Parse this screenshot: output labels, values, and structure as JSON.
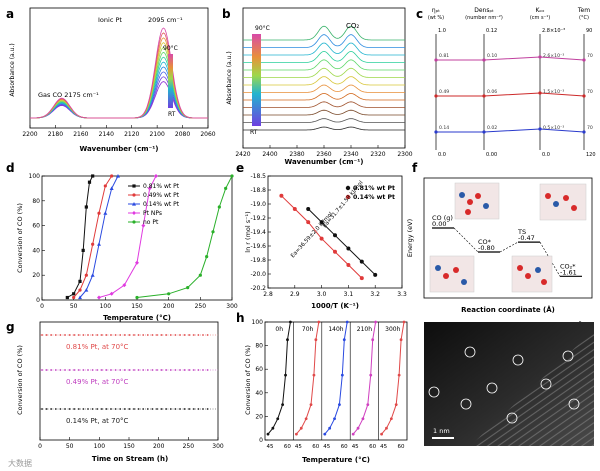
{
  "watermark": "大数据",
  "panel_a": {
    "letter": "a",
    "type": "line",
    "xlabel": "Wavenumber (cm⁻¹)",
    "ylabel": "Absorbance (a.u.)",
    "xlim": [
      2200,
      2060
    ],
    "x_ticks": [
      "2200",
      "2180",
      "2160",
      "2140",
      "2120",
      "2100",
      "2080",
      "2060"
    ],
    "ann_gas": "Gas CO  2175 cm⁻¹",
    "ann_ionic": "Ionic Pt",
    "ann_ionic_val": "2095 cm⁻¹",
    "temp_top": "90°C",
    "temp_bottom": "RT",
    "peak_position": 2095,
    "gas_co_position": 2175,
    "series_count": 12,
    "series_colors": [
      "#8a2fd4",
      "#6e3fe0",
      "#4a64e6",
      "#2f8de0",
      "#22b4cf",
      "#2ccf9c",
      "#5fd86a",
      "#9ed84a",
      "#d8c63a",
      "#e8903a",
      "#e05e5e",
      "#d84aa8"
    ]
  },
  "panel_b": {
    "letter": "b",
    "type": "line",
    "xlabel": "Wavenumber (cm⁻¹)",
    "ylabel": "Absorbance (a.u.)",
    "xlim": [
      2420,
      2300
    ],
    "x_ticks": [
      "2420",
      "2400",
      "2380",
      "2360",
      "2340",
      "2320",
      "2300"
    ],
    "ann_co2": "CO₂",
    "temp_top": "90°C",
    "temp_bottom": "RT",
    "series_count": 13,
    "series_colors": [
      "#2a2a2a",
      "#555555",
      "#7a4a2a",
      "#a0522d",
      "#d2691e",
      "#e8903a",
      "#d8c63a",
      "#9ed84a",
      "#5fd86a",
      "#2ccf9c",
      "#22b4cf",
      "#2f8de0",
      "#3ab36b"
    ]
  },
  "panel_c": {
    "letter": "c",
    "col_labels": [
      "ηₚₜ",
      "Densₚₜ",
      "Kₒₓ",
      "Tem"
    ],
    "col_units": [
      "(wt %)",
      "(number nm⁻²)",
      "(cm s⁻¹)",
      "(°C)"
    ],
    "col_top": [
      "1.0",
      "0.12",
      "2.8×10⁻³",
      "90"
    ],
    "col_bottom": [
      "0.0",
      "0.00",
      "0.0",
      "120"
    ],
    "rows": [
      {
        "color": "#c0409e",
        "values": [
          "0.81",
          "0.10",
          "2.6×10⁻³",
          "70"
        ]
      },
      {
        "color": "#cc2a2a",
        "values": [
          "0.49",
          "0.06",
          "1.5×10⁻³",
          "70"
        ]
      },
      {
        "color": "#2a3acc",
        "values": [
          "0.14",
          "0.02",
          "0.5×10⁻³",
          "70"
        ]
      }
    ]
  },
  "chart_data": [
    {
      "panel": "d",
      "type": "line",
      "xlabel": "Temperature (°C)",
      "ylabel": "Conversion of CO (%)",
      "xlim": [
        0,
        300
      ],
      "ylim": [
        0,
        100
      ],
      "x_ticks": [
        "0",
        "50",
        "100",
        "150",
        "200",
        "250",
        "300"
      ],
      "y_ticks": [
        "0",
        "20",
        "40",
        "60",
        "80",
        "100"
      ],
      "series": [
        {
          "name": "0.81% wt Pt",
          "color": "#111111",
          "marker": "square",
          "x": [
            40,
            50,
            60,
            65,
            70,
            75,
            80
          ],
          "y": [
            2,
            5,
            15,
            40,
            75,
            95,
            100
          ]
        },
        {
          "name": "0.49% wt Pt",
          "color": "#e03a3a",
          "marker": "circle",
          "x": [
            50,
            60,
            70,
            80,
            90,
            100,
            110
          ],
          "y": [
            2,
            8,
            20,
            45,
            70,
            92,
            100
          ]
        },
        {
          "name": "0.14% wt Pt",
          "color": "#2a4ae0",
          "marker": "triangle",
          "x": [
            60,
            70,
            80,
            90,
            100,
            110,
            120
          ],
          "y": [
            2,
            8,
            20,
            45,
            70,
            90,
            100
          ]
        },
        {
          "name": "Pt NPs",
          "color": "#e03ae0",
          "marker": "diamond",
          "x": [
            90,
            110,
            130,
            150,
            160,
            170,
            180
          ],
          "y": [
            2,
            5,
            12,
            30,
            60,
            90,
            100
          ]
        },
        {
          "name": "no Pt",
          "color": "#2ab02a",
          "marker": "circle",
          "x": [
            150,
            200,
            230,
            250,
            260,
            270,
            280,
            290,
            300
          ],
          "y": [
            2,
            5,
            10,
            20,
            35,
            55,
            75,
            90,
            100
          ]
        }
      ]
    },
    {
      "panel": "e",
      "type": "scatter",
      "xlabel": "1000/T (K⁻¹)",
      "ylabel": "ln r (mol s⁻¹)",
      "xlim": [
        2.8,
        3.3
      ],
      "ylim": [
        -20.2,
        -18.5
      ],
      "x_ticks": [
        "2.8",
        "2.9",
        "3.0",
        "3.1",
        "3.2",
        "3.3"
      ],
      "y_ticks": [
        "-18.5",
        "-18.8",
        "-19.0",
        "-19.2",
        "-19.4",
        "-19.6",
        "-19.8",
        "-20.0",
        "-20.2"
      ],
      "series": [
        {
          "name": "0.81% wt Pt",
          "color": "#111111",
          "x": [
            2.95,
            3.0,
            3.05,
            3.1,
            3.15,
            3.2
          ],
          "y": [
            -19.0,
            -19.2,
            -19.4,
            -19.6,
            -19.8,
            -20.0
          ]
        },
        {
          "name": "0.14% wt Pt",
          "color": "#e03a3a",
          "x": [
            2.85,
            2.9,
            2.95,
            3.0,
            3.05,
            3.1,
            3.15
          ],
          "y": [
            -18.8,
            -19.0,
            -19.2,
            -19.45,
            -19.65,
            -19.85,
            -20.05
          ]
        }
      ],
      "ann_1": "Ea=31.7±1.58 kJ/mol",
      "ann_2": "Ea=36.59±2.0 kJ/mol"
    },
    {
      "panel": "g",
      "type": "scatter",
      "xlabel": "Time on Stream (h)",
      "ylabel": "Conversion of CO (%)",
      "xlim": [
        0,
        300
      ],
      "x_ticks": [
        "0",
        "50",
        "100",
        "150",
        "200",
        "250",
        "300"
      ],
      "series": [
        {
          "name": "0.81% Pt, at 70°C",
          "color": "#e04a4a",
          "level": 100
        },
        {
          "name": "0.49% Pt, at 70°C",
          "color": "#c040c0",
          "level": 100
        },
        {
          "name": "0.14% Pt, at 70°C",
          "color": "#222222",
          "level": 100
        }
      ]
    },
    {
      "panel": "h",
      "type": "line",
      "xlabel": "Temperature (°C)",
      "ylabel": "Conversion of CO (%)",
      "ylim": [
        0,
        100
      ],
      "y_ticks": [
        "0",
        "20",
        "40",
        "60",
        "80",
        "100"
      ],
      "runs": [
        {
          "label": "0h",
          "color": "#111111"
        },
        {
          "label": "70h",
          "color": "#e04a4a"
        },
        {
          "label": "140h",
          "color": "#2a4ae0"
        },
        {
          "label": "210h",
          "color": "#d040c0"
        },
        {
          "label": "300h",
          "color": "#e04a4a"
        }
      ],
      "run_x": [
        45,
        50,
        55,
        60,
        63,
        65,
        68
      ],
      "run_y": [
        5,
        10,
        18,
        30,
        55,
        85,
        100
      ],
      "x_ticks": [
        "45",
        "60",
        "45",
        "60",
        "45",
        "60",
        "45",
        "60",
        "45",
        "60"
      ]
    },
    {
      "panel": "f",
      "type": "line",
      "xlabel": "Reaction coordinate (Å)",
      "ylabel": "Energy (eV)",
      "levels": [
        {
          "label": "CO (g)",
          "value": "0.00"
        },
        {
          "label": "CO*",
          "value": "-0.80"
        },
        {
          "label": "TS",
          "value": "-0.47"
        },
        {
          "label": "CO₂*",
          "value": "-1.61"
        }
      ],
      "values": [
        0.0,
        -0.8,
        -0.47,
        -1.61
      ]
    }
  ],
  "panel_i": {
    "letter": "i",
    "scale_bar": "1 nm"
  }
}
